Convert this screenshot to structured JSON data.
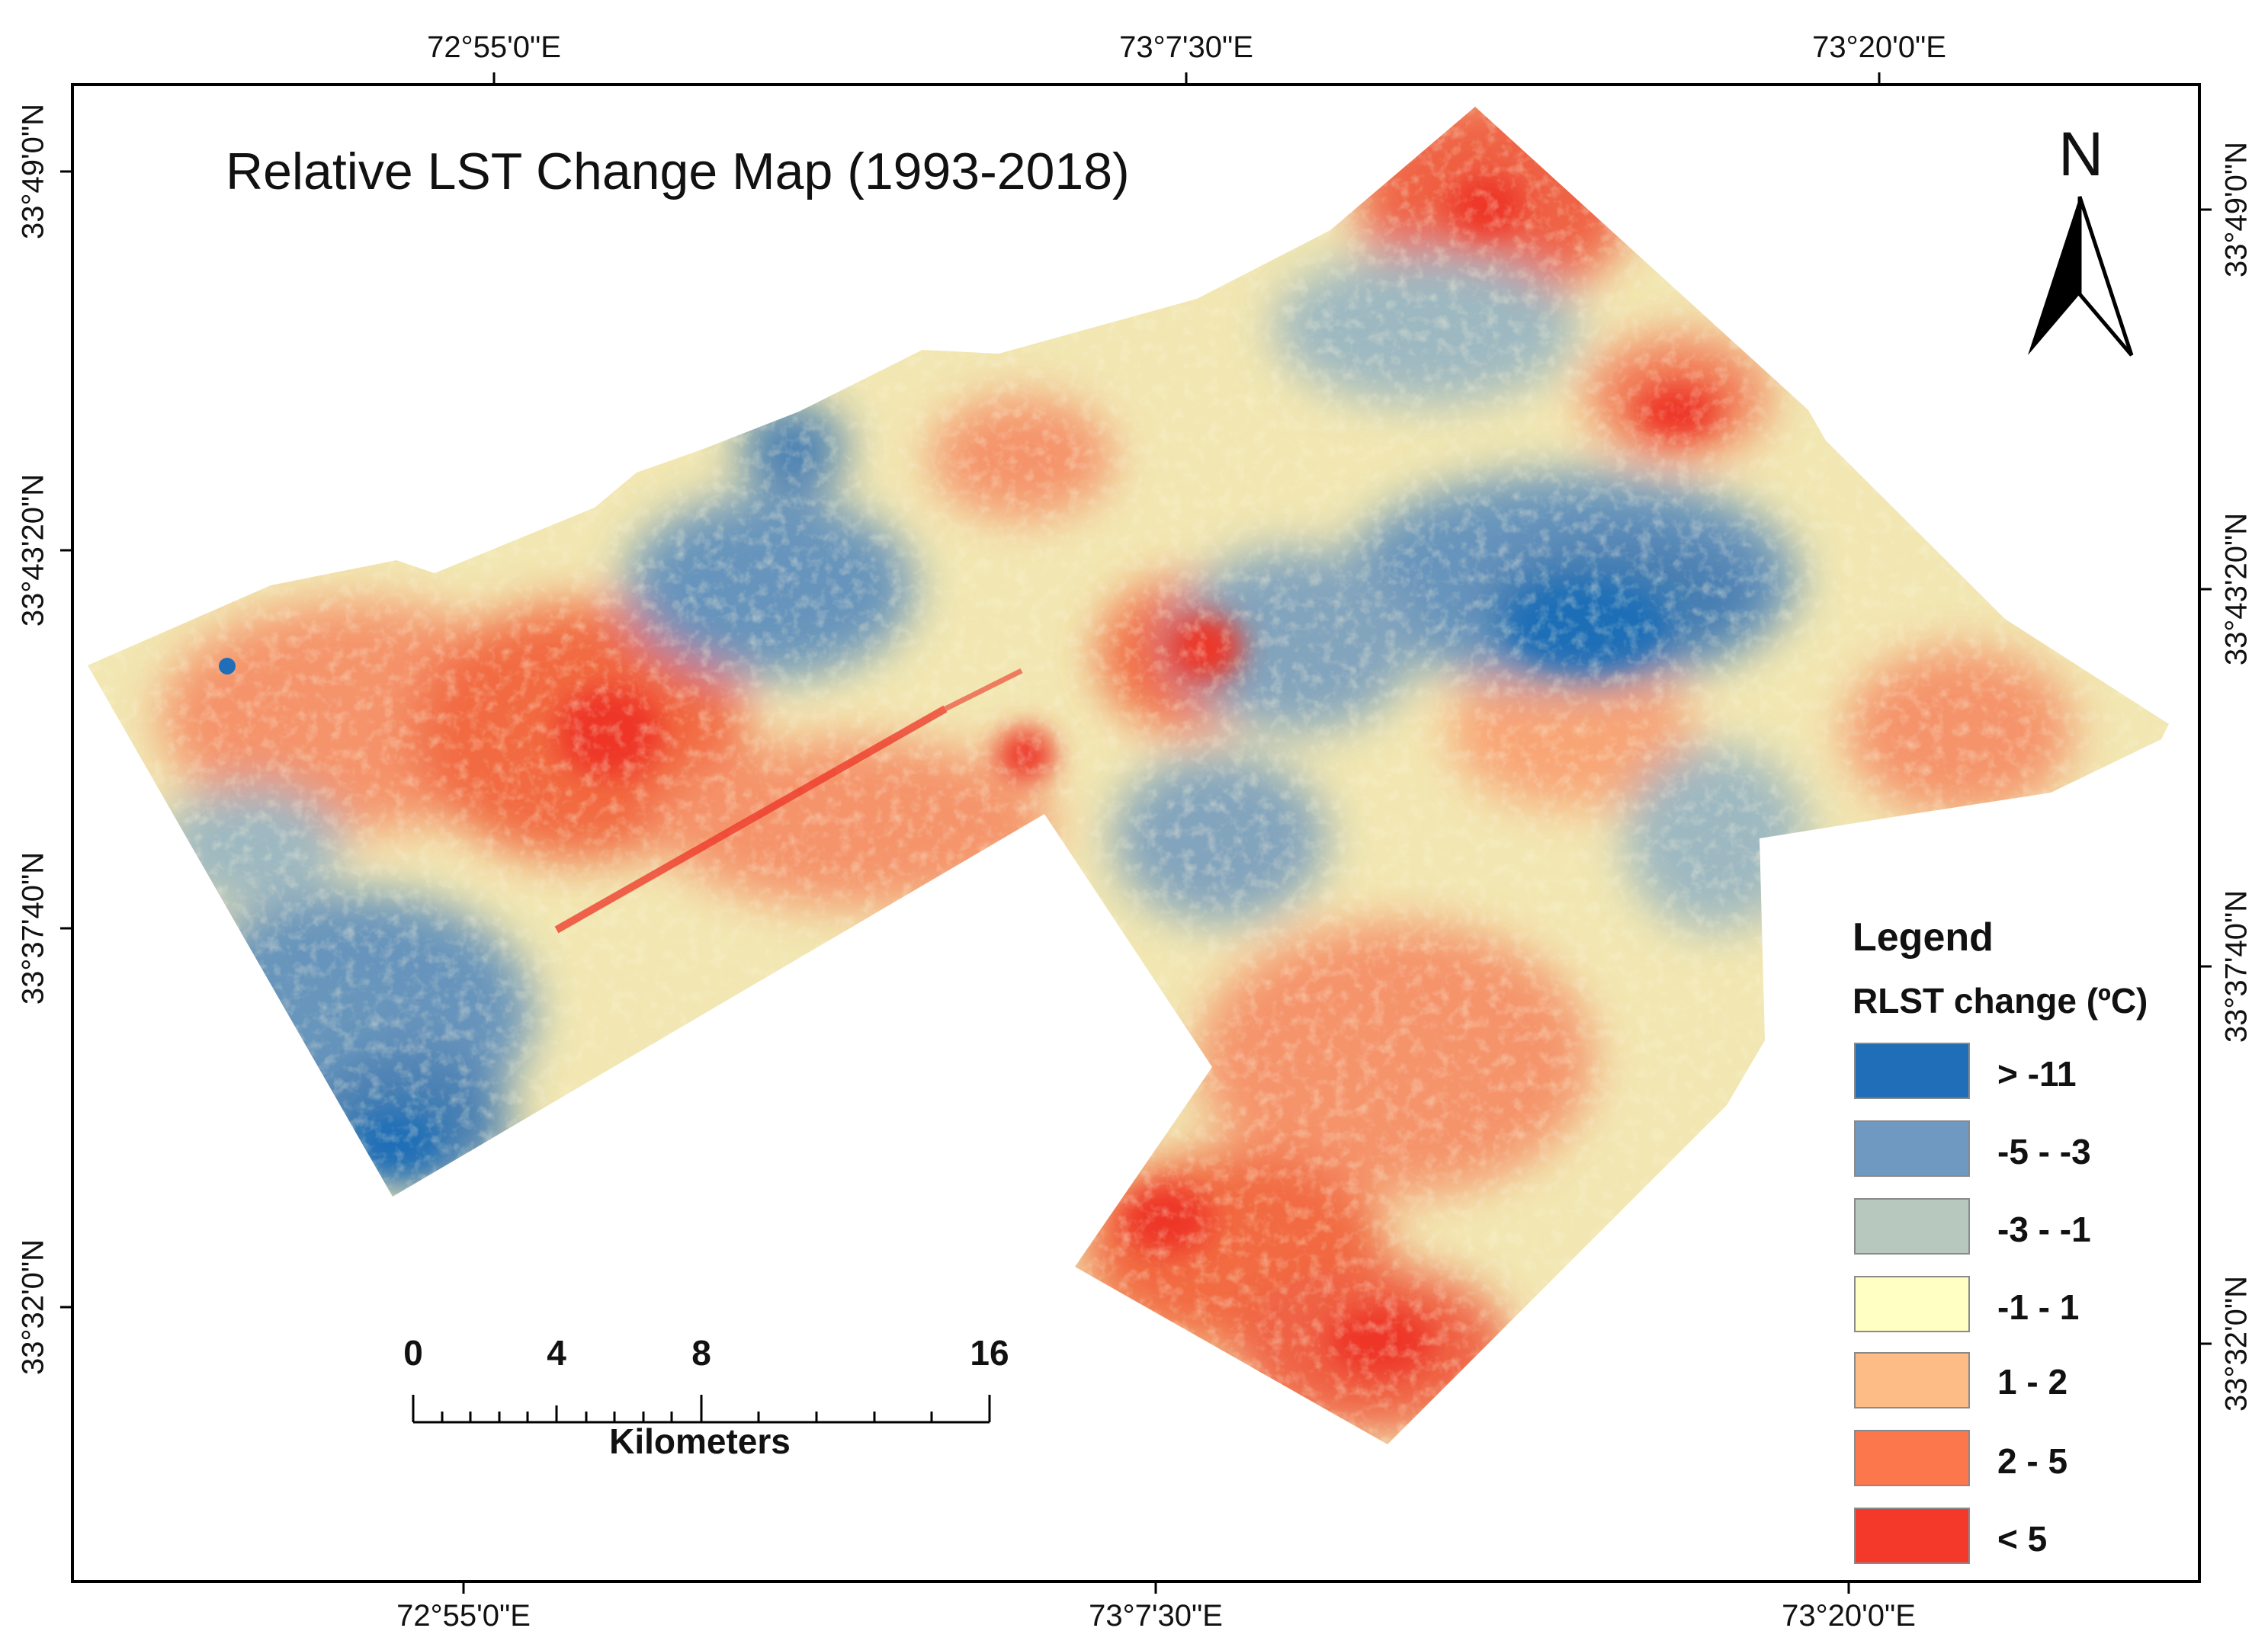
{
  "map": {
    "title": "Relative LST Change Map (1993-2018)",
    "north_label": "N",
    "longitude_ticks": [
      "72°55'0\"E",
      "73°7'30\"E",
      "73°20'0\"E"
    ],
    "latitude_ticks_left": [
      "33°49'0\"N",
      "33°43'20\"N",
      "33°37'40\"N",
      "33°32'0\"N"
    ],
    "latitude_ticks_right": [
      "33°49'0\"N",
      "33°43'20\"N",
      "33°37'40\"N",
      "33°32'0\"N"
    ]
  },
  "scale_bar": {
    "ticks": [
      "0",
      "4",
      "8",
      "16"
    ],
    "unit": "Kilometers"
  },
  "legend": {
    "title": "Legend",
    "subtitle": "RLST change (ºC)",
    "classes": [
      {
        "label": "> -11",
        "color": "#1f6eb7"
      },
      {
        "label": "-5 - -3",
        "color": "#6f99c0"
      },
      {
        "label": "-3 - -1",
        "color": "#b7c8bf"
      },
      {
        "label": "-1 - 1",
        "color": "#ffffc4"
      },
      {
        "label": "1 - 2",
        "color": "#fdbc86"
      },
      {
        "label": "2 - 5",
        "color": "#fd774d"
      },
      {
        "label": "< 5",
        "color": "#f4392a"
      }
    ]
  },
  "colors": {
    "frame": "#000000",
    "cool_blue": "#2a6db4",
    "mid_blue": "#6f99c0",
    "neutral": "#f3eab0",
    "warm_orange": "#fa9a6c",
    "hot_red": "#ee3526"
  }
}
